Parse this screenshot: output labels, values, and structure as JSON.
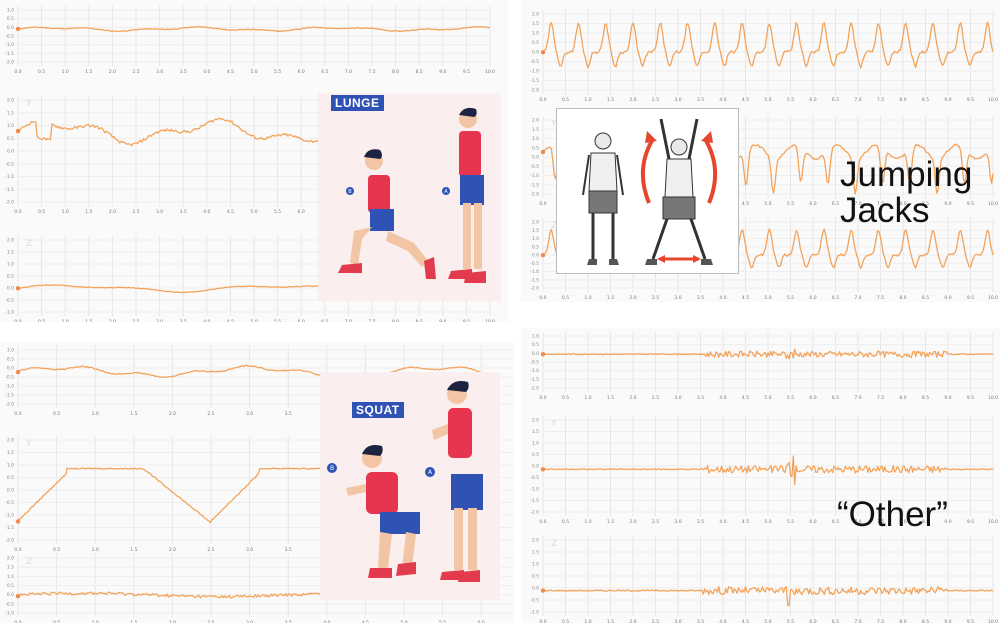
{
  "labels": {
    "jumping_jacks": [
      "Jumping",
      "Jacks"
    ],
    "other": "“Other”",
    "lunge_badge": "LUNGE",
    "squat_badge": "SQUAT",
    "axis_y": "Y",
    "axis_z": "Z",
    "pose_a": "A",
    "pose_b": "B"
  },
  "colors": {
    "trace": "#f3a35a",
    "badge": "#2f53b5",
    "shirt": "#e8354f",
    "shorts": "#2f53b5",
    "skin": "#f2c6a4",
    "hair": "#1d2340",
    "shoes": "#e23b4e"
  },
  "chart_data": [
    {
      "type": "line",
      "name": "lunge",
      "x_ticks": [
        "0.0",
        "0.5",
        "1.0",
        "1.5",
        "2.0",
        "2.5",
        "3.0",
        "3.5",
        "4.0",
        "4.5",
        "5.0",
        "5.5",
        "6.0",
        "6.5",
        "7.0",
        "7.5",
        "8.0",
        "8.5",
        "9.0",
        "9.5",
        "10.0"
      ],
      "xlim": [
        0,
        10
      ],
      "axes": [
        {
          "axis": "x",
          "y_ticks": [
            "1.0",
            "0.5",
            "0.0",
            "-0.5",
            "-1.0",
            "-1.5",
            "-2.0"
          ],
          "ylim": [
            -2,
            1
          ],
          "style": "flat"
        },
        {
          "axis": "y",
          "y_ticks": [
            "2.0",
            "1.5",
            "1.0",
            "0.5",
            "0.0",
            "-0.5",
            "-1.0",
            "-1.5",
            "-2.0"
          ],
          "ylim": [
            -2,
            2.2
          ],
          "style": "lunge"
        },
        {
          "axis": "z",
          "y_ticks": [
            "2.0",
            "1.5",
            "1.0",
            "0.5",
            "0.0",
            "-0.5",
            "-1.0"
          ],
          "ylim": [
            -1,
            2.2
          ],
          "style": "gentle"
        }
      ]
    },
    {
      "type": "line",
      "name": "jumping-jacks",
      "x_ticks": [
        "0.0",
        "0.5",
        "1.0",
        "1.5",
        "2.0",
        "2.5",
        "3.0",
        "3.5",
        "4.0",
        "4.5",
        "5.0",
        "5.5",
        "6.0",
        "6.5",
        "7.0",
        "7.5",
        "8.0",
        "8.5",
        "9.0",
        "9.5",
        "10.0"
      ],
      "xlim": [
        0,
        10
      ],
      "axes": [
        {
          "axis": "x",
          "y_ticks": [
            "2.0",
            "1.5",
            "1.0",
            "0.5",
            "0.0",
            "-0.5",
            "-1.0",
            "-1.5",
            "-2.0"
          ],
          "ylim": [
            -2,
            2.2
          ],
          "style": "jj"
        },
        {
          "axis": "y",
          "y_ticks": [
            "2.0",
            "1.5",
            "1.0",
            "0.5",
            "0.0",
            "-0.5",
            "-1.0",
            "-1.5",
            "-2.0"
          ],
          "ylim": [
            -2,
            2.2
          ],
          "style": "jjdeep"
        },
        {
          "axis": "z",
          "y_ticks": [
            "2.0",
            "1.5",
            "1.0",
            "0.5",
            "0.0",
            "-0.5",
            "-1.0",
            "-1.5",
            "-2.0"
          ],
          "ylim": [
            -2,
            2.2
          ],
          "style": "jj"
        }
      ]
    },
    {
      "type": "line",
      "name": "squat",
      "x_ticks": [
        "0.0",
        "0.5",
        "1.0",
        "1.5",
        "2.0",
        "2.5",
        "3.0",
        "3.5",
        "4.0",
        "4.5",
        "5.0",
        "5.5",
        "6.0"
      ],
      "xlim": [
        0,
        10
      ],
      "axes": [
        {
          "axis": "x",
          "y_ticks": [
            "1.0",
            "0.5",
            "0.0",
            "-0.5",
            "-1.0",
            "-1.5",
            "-2.0"
          ],
          "ylim": [
            -2,
            1
          ],
          "style": "wobble"
        },
        {
          "axis": "y",
          "y_ticks": [
            "2.0",
            "1.5",
            "1.0",
            "0.5",
            "0.0",
            "-0.5",
            "-1.0",
            "-1.5",
            "-2.0"
          ],
          "ylim": [
            -2,
            2.2
          ],
          "style": "squat"
        },
        {
          "axis": "z",
          "y_ticks": [
            "2.0",
            "1.5",
            "1.0",
            "0.5",
            "0.0",
            "-0.5",
            "-1.0"
          ],
          "ylim": [
            -1,
            2.2
          ],
          "style": "noisy"
        }
      ]
    },
    {
      "type": "line",
      "name": "other",
      "x_ticks": [
        "0.0",
        "0.5",
        "1.0",
        "1.5",
        "2.0",
        "2.5",
        "3.0",
        "3.5",
        "4.0",
        "4.5",
        "5.0",
        "5.5",
        "6.0",
        "6.5",
        "7.0",
        "7.5",
        "8.0",
        "8.5",
        "9.0",
        "9.5",
        "10.0"
      ],
      "xlim": [
        0,
        10
      ],
      "axes": [
        {
          "axis": "x",
          "y_ticks": [
            "1.0",
            "0.5",
            "0.0",
            "-0.5",
            "-1.0",
            "-1.5",
            "-2.0"
          ],
          "ylim": [
            -2,
            1
          ],
          "style": "other"
        },
        {
          "axis": "y",
          "y_ticks": [
            "2.0",
            "1.5",
            "1.0",
            "0.5",
            "0.0",
            "-0.5",
            "-1.0",
            "-1.5",
            "-2.0"
          ],
          "ylim": [
            -2,
            2.2
          ],
          "style": "other"
        },
        {
          "axis": "z",
          "y_ticks": [
            "2.0",
            "1.5",
            "1.0",
            "0.5",
            "0.0",
            "-0.5",
            "-1.0"
          ],
          "ylim": [
            -1,
            2.2
          ],
          "style": "other"
        }
      ]
    }
  ]
}
